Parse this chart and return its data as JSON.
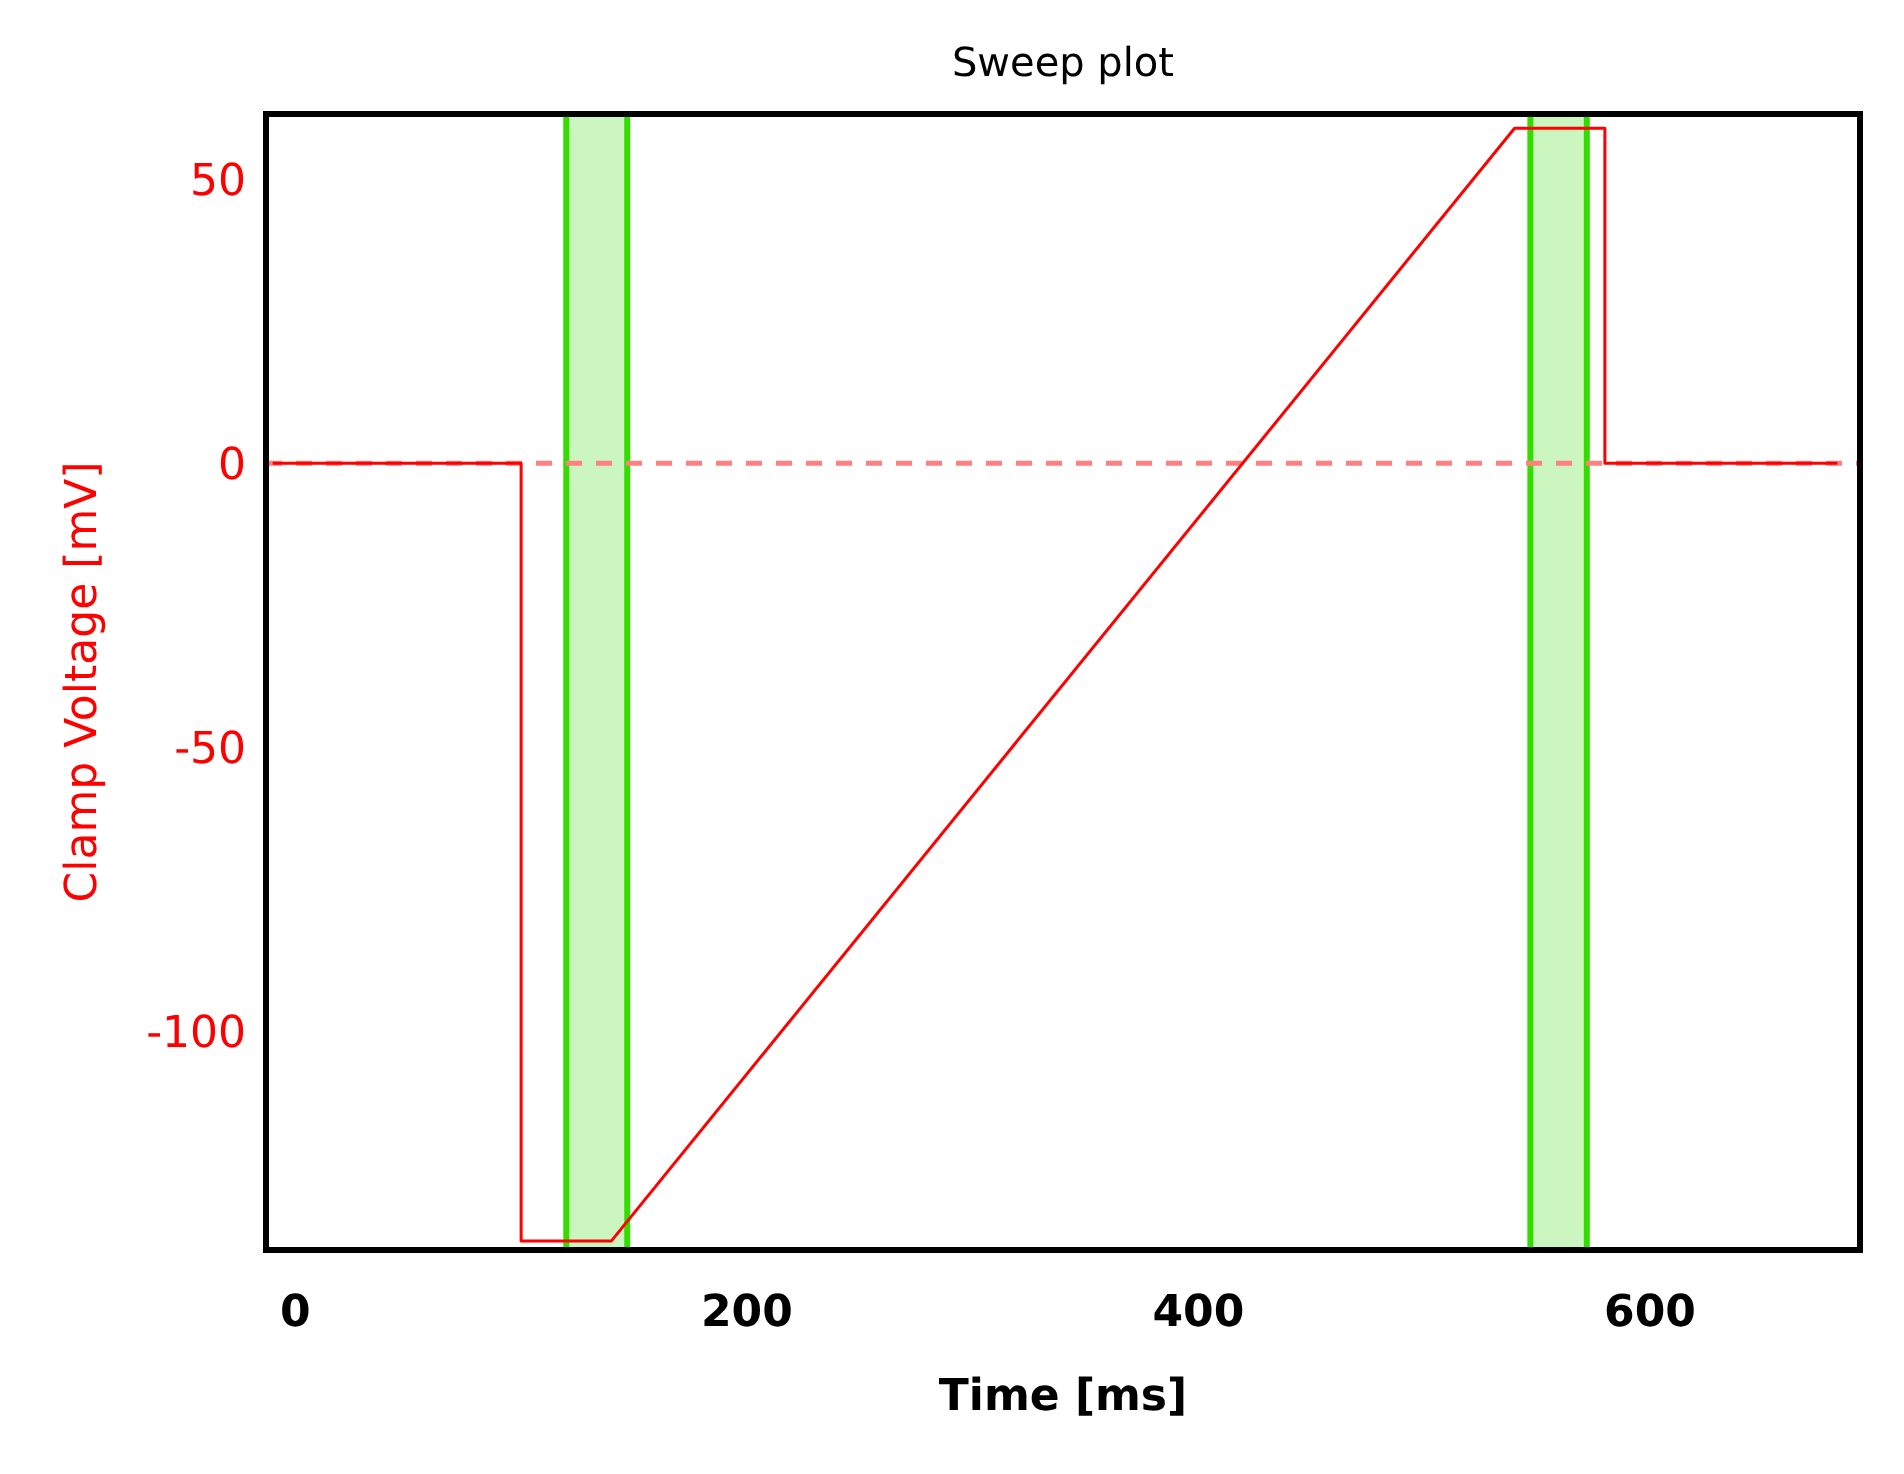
{
  "chart_data": {
    "type": "line",
    "title": "Sweep plot",
    "xlabel": "Time [ms]",
    "ylabel": "Clamp Voltage [mV]",
    "xlim": [
      -13,
      693
    ],
    "xticks": [
      0,
      200,
      400,
      600
    ],
    "ylim": [
      -138.6,
      61.5
    ],
    "yticks": [
      -100,
      -50,
      0,
      50
    ],
    "grid": false,
    "series": [
      {
        "color": "#ff0000",
        "x": [
          -10,
          100,
          100,
          140,
          540,
          580,
          580,
          683
        ],
        "values": [
          0,
          0,
          -137,
          -137,
          59,
          59,
          0,
          0
        ]
      }
    ],
    "ref_lines": [
      {
        "axis": "y",
        "value": 0,
        "color": "#ff8080",
        "line_style": "dashed"
      }
    ],
    "bands": [
      {
        "axis": "x",
        "from": 120,
        "to": 147,
        "color": "#33dd00"
      },
      {
        "axis": "x",
        "from": 547,
        "to": 572,
        "color": "#33dd00"
      }
    ]
  }
}
